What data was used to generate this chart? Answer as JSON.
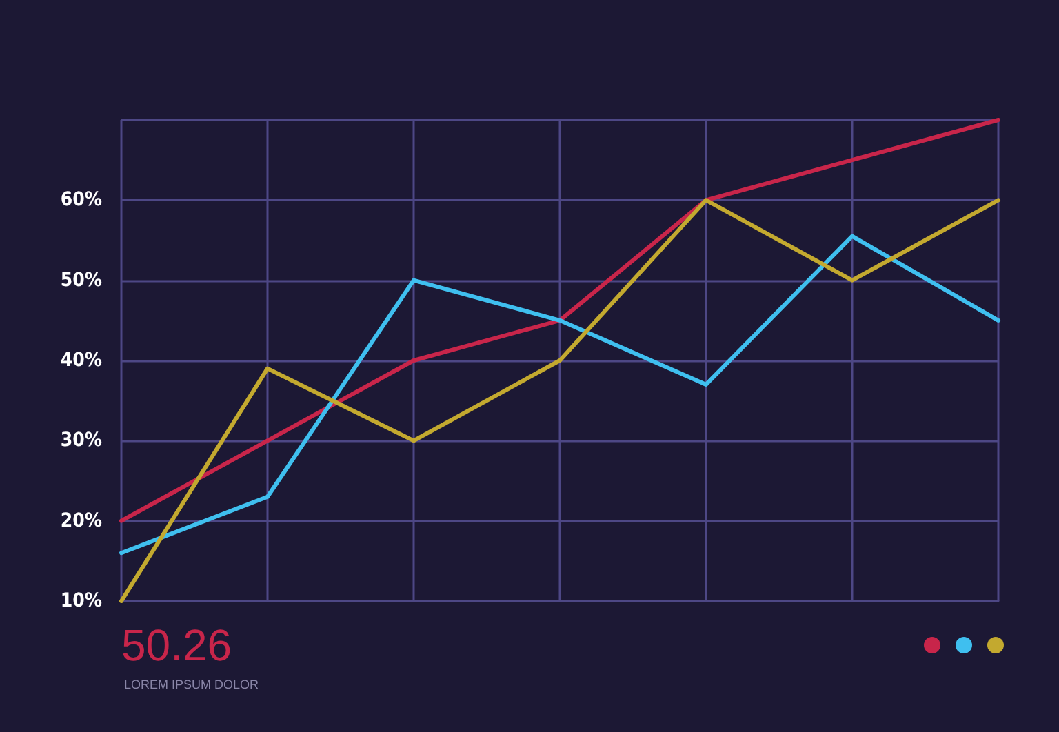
{
  "chart_data": {
    "type": "line",
    "categories": [
      null,
      null,
      null,
      null,
      null,
      null,
      null
    ],
    "series": [
      {
        "color": "#c8254a",
        "values": [
          20,
          30,
          40,
          45,
          60,
          65,
          70
        ]
      },
      {
        "color": "#3fbfef",
        "values": [
          16,
          23,
          50,
          45,
          37,
          55.5,
          45
        ]
      },
      {
        "color": "#c3a92f",
        "values": [
          10,
          39,
          30,
          40,
          60,
          50,
          60
        ]
      }
    ],
    "ylim": [
      10,
      70
    ],
    "yticks": [
      {
        "value": 10,
        "label": "10%"
      },
      {
        "value": 20,
        "label": "20%"
      },
      {
        "value": 30,
        "label": "30%"
      },
      {
        "value": 40,
        "label": "40%"
      },
      {
        "value": 50,
        "label": "50%"
      },
      {
        "value": 60,
        "label": "60%"
      },
      {
        "value": 70,
        "label": null
      }
    ],
    "grid": true,
    "marker": "none",
    "line_style": "solid",
    "tick_labels": "y",
    "annotations": [
      "50.26",
      "LOREM IPSUM DOLOR"
    ]
  }
}
